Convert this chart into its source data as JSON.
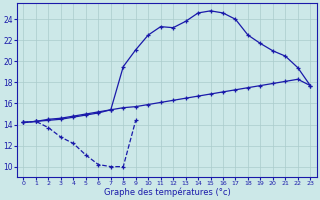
{
  "title": "Graphe des températures (°c)",
  "bg_color": "#cce8e8",
  "grid_color": "#aacccc",
  "line_color": "#1a1aaa",
  "xlim": [
    -0.5,
    23.5
  ],
  "ylim": [
    9.0,
    25.5
  ],
  "xticks": [
    0,
    1,
    2,
    3,
    4,
    5,
    6,
    7,
    8,
    9,
    10,
    11,
    12,
    13,
    14,
    15,
    16,
    17,
    18,
    19,
    20,
    21,
    22,
    23
  ],
  "yticks": [
    10,
    12,
    14,
    16,
    18,
    20,
    22,
    24
  ],
  "line1_x": [
    0,
    1,
    2,
    3,
    4,
    5,
    6,
    7,
    8,
    9
  ],
  "line1_y": [
    14.2,
    14.3,
    13.7,
    12.8,
    12.2,
    11.1,
    10.2,
    10.0,
    10.0,
    14.4
  ],
  "line2_x": [
    0,
    1,
    2,
    3,
    4,
    5,
    6,
    7,
    8,
    9,
    10,
    11,
    12,
    13,
    14,
    15,
    16,
    17,
    18,
    19,
    20,
    21,
    22,
    23
  ],
  "line2_y": [
    14.2,
    14.3,
    14.4,
    14.5,
    14.7,
    14.9,
    15.1,
    15.4,
    19.5,
    21.1,
    22.5,
    23.3,
    23.2,
    23.8,
    24.6,
    24.8,
    24.6,
    24.0,
    22.5,
    21.7,
    21.0,
    20.5,
    19.4,
    17.7
  ],
  "line3_x": [
    0,
    1,
    2,
    3,
    4,
    5,
    6,
    7,
    8,
    9,
    10,
    11,
    12,
    13,
    14,
    15,
    16,
    17,
    18,
    19,
    20,
    21,
    22,
    23
  ],
  "line3_y": [
    14.2,
    14.3,
    14.5,
    14.6,
    14.8,
    15.0,
    15.2,
    15.4,
    15.6,
    15.7,
    15.9,
    16.1,
    16.3,
    16.5,
    16.7,
    16.9,
    17.1,
    17.3,
    17.5,
    17.7,
    17.9,
    18.1,
    18.3,
    17.7
  ]
}
